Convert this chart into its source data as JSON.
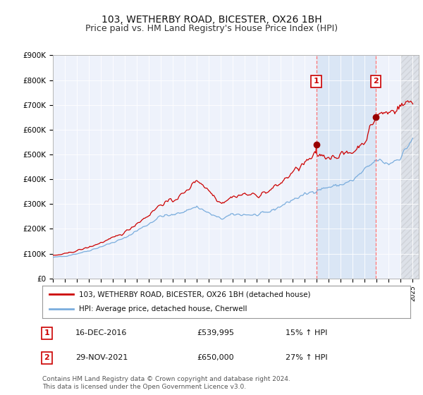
{
  "title": "103, WETHERBY ROAD, BICESTER, OX26 1BH",
  "subtitle": "Price paid vs. HM Land Registry's House Price Index (HPI)",
  "ylabel_ticks": [
    "£0",
    "£100K",
    "£200K",
    "£300K",
    "£400K",
    "£500K",
    "£600K",
    "£700K",
    "£800K",
    "£900K"
  ],
  "ytick_values": [
    0,
    100000,
    200000,
    300000,
    400000,
    500000,
    600000,
    700000,
    800000,
    900000
  ],
  "ylim": [
    0,
    900000
  ],
  "xlim_start": 1995.0,
  "xlim_end": 2025.5,
  "legend_line1": "103, WETHERBY ROAD, BICESTER, OX26 1BH (detached house)",
  "legend_line2": "HPI: Average price, detached house, Cherwell",
  "sale1_date": "16-DEC-2016",
  "sale1_price": "£539,995",
  "sale1_hpi": "15% ↑ HPI",
  "sale2_date": "29-NOV-2021",
  "sale2_price": "£650,000",
  "sale2_hpi": "27% ↑ HPI",
  "footnote": "Contains HM Land Registry data © Crown copyright and database right 2024.\nThis data is licensed under the Open Government Licence v3.0.",
  "line_color_red": "#cc0000",
  "line_color_blue": "#7aaddd",
  "background_plot": "#eef2fb",
  "shade_between_color": "#dae6f5",
  "hatch_color": "#cccccc",
  "sale1_x": 2016.958,
  "sale2_x": 2021.916,
  "sale1_y": 539995,
  "sale2_y": 650000,
  "hatch_start": 2024.0,
  "title_fontsize": 10,
  "subtitle_fontsize": 9
}
